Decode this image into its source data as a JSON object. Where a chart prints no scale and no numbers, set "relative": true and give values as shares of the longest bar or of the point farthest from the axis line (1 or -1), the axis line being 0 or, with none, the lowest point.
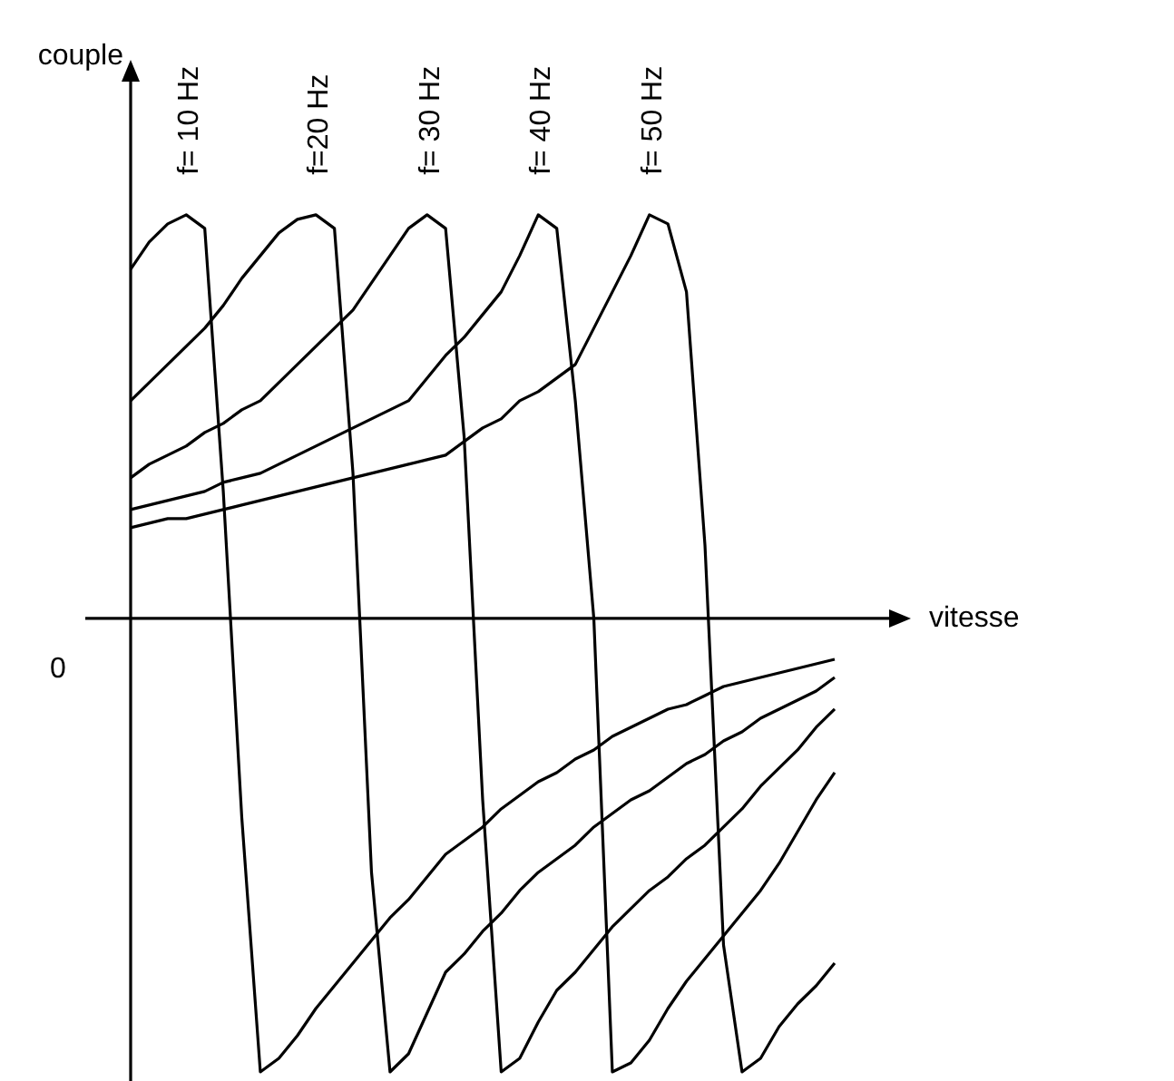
{
  "chart_data": {
    "type": "line",
    "relative": true,
    "xlabel": "vitesse",
    "ylabel": "couple",
    "annotations": [
      "0"
    ],
    "legend": false,
    "grid": false,
    "marker": "none",
    "line_style": "solid",
    "categories": [
      null,
      null,
      null,
      null,
      null,
      null,
      null,
      null,
      null,
      null,
      null,
      null,
      null,
      null,
      null,
      null,
      null,
      null,
      null,
      null,
      null,
      null,
      null,
      null,
      null,
      null,
      null,
      null,
      null,
      null,
      null,
      null,
      null,
      null,
      null,
      null,
      null,
      null,
      null
    ],
    "series": [
      {
        "name": "f= 10 Hz",
        "color": "#000000",
        "values": [
          0.77,
          0.83,
          0.87,
          0.89,
          0.86,
          0.28,
          -0.44,
          -1,
          -0.97,
          -0.92,
          -0.86,
          -0.81,
          -0.76,
          -0.71,
          -0.66,
          -0.62,
          -0.57,
          -0.52,
          -0.49,
          -0.46,
          -0.42,
          -0.39,
          -0.36,
          -0.34,
          -0.31,
          -0.29,
          -0.26,
          -0.24,
          -0.22,
          -0.2,
          -0.19,
          -0.17,
          -0.15,
          -0.14,
          -0.13,
          -0.12,
          -0.11,
          -0.1,
          -0.09
        ]
      },
      {
        "name": "f=20 Hz",
        "color": "#000000",
        "values": [
          0.48,
          0.52,
          0.56,
          0.6,
          0.64,
          0.69,
          0.75,
          0.8,
          0.85,
          0.88,
          0.89,
          0.86,
          0.32,
          -0.56,
          -1,
          -0.96,
          -0.87,
          -0.78,
          -0.74,
          -0.69,
          -0.65,
          -0.6,
          -0.56,
          -0.53,
          -0.5,
          -0.46,
          -0.43,
          -0.4,
          -0.38,
          -0.35,
          -0.32,
          -0.3,
          -0.27,
          -0.25,
          -0.22,
          -0.2,
          -0.18,
          -0.16,
          -0.13
        ]
      },
      {
        "name": "f= 30 Hz",
        "color": "#000000",
        "values": [
          0.31,
          0.34,
          0.36,
          0.38,
          0.41,
          0.43,
          0.46,
          0.48,
          0.52,
          0.56,
          0.6,
          0.64,
          0.68,
          0.74,
          0.8,
          0.86,
          0.89,
          0.86,
          0.4,
          -0.4,
          -1,
          -0.97,
          -0.89,
          -0.82,
          -0.78,
          -0.73,
          -0.68,
          -0.64,
          -0.6,
          -0.57,
          -0.53,
          -0.5,
          -0.46,
          -0.42,
          -0.37,
          -0.33,
          -0.29,
          -0.24,
          -0.2
        ]
      },
      {
        "name": "f= 40 Hz",
        "color": "#000000",
        "values": [
          0.24,
          0.25,
          0.26,
          0.27,
          0.28,
          0.3,
          0.31,
          0.32,
          0.34,
          0.36,
          0.38,
          0.4,
          0.42,
          0.44,
          0.46,
          0.48,
          0.53,
          0.58,
          0.62,
          0.67,
          0.72,
          0.8,
          0.89,
          0.86,
          0.48,
          0,
          -1,
          -0.98,
          -0.93,
          -0.86,
          -0.8,
          -0.75,
          -0.7,
          -0.65,
          -0.6,
          -0.54,
          -0.47,
          -0.4,
          -0.34
        ]
      },
      {
        "name": "f= 50 Hz",
        "color": "#000000",
        "values": [
          0.2,
          0.21,
          0.22,
          0.22,
          0.23,
          0.24,
          0.25,
          0.26,
          0.27,
          0.28,
          0.29,
          0.3,
          0.31,
          0.32,
          0.33,
          0.34,
          0.35,
          0.36,
          0.39,
          0.42,
          0.44,
          0.48,
          0.5,
          0.53,
          0.56,
          0.64,
          0.72,
          0.8,
          0.89,
          0.87,
          0.72,
          0.16,
          -0.72,
          -1,
          -0.97,
          -0.9,
          -0.85,
          -0.81,
          -0.76
        ]
      }
    ]
  }
}
